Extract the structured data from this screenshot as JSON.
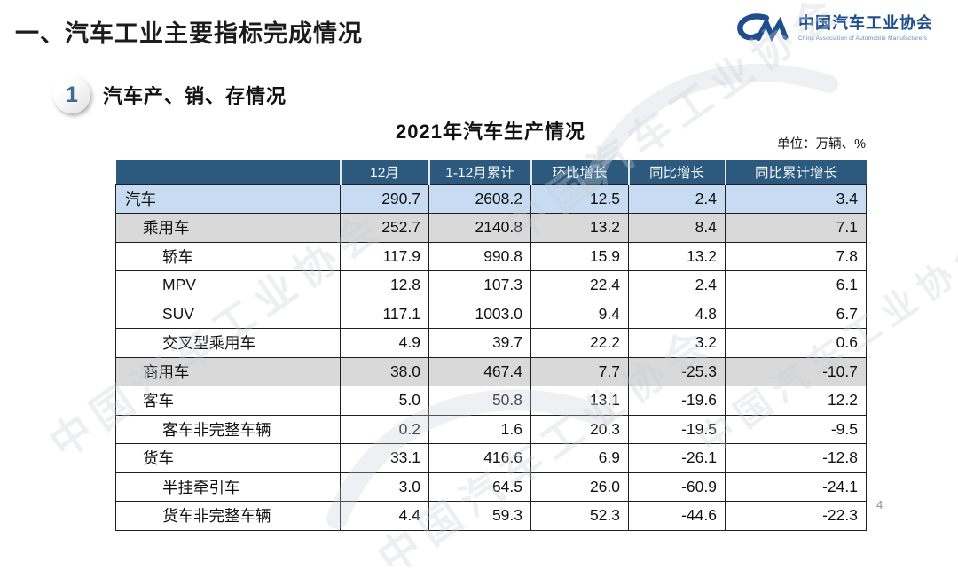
{
  "page": {
    "title": "一、汽车工业主要指标完成情况",
    "page_number": "4"
  },
  "logo": {
    "name_cn": "中国汽车工业协会",
    "name_en": "China Association of Automobile Manufacturers",
    "color": "#1f4e8c"
  },
  "section": {
    "badge": "1",
    "heading": "汽车产、销、存情况"
  },
  "table": {
    "title": "2021年汽车生产情况",
    "unit_note": "单位：万辆、%",
    "colors": {
      "header_bg": "#2b5a7e",
      "highlight_row_bg": "#c7dcf2",
      "subtotal_row_bg": "#d9d9d9"
    },
    "columns": [
      "",
      "12月",
      "1-12月累计",
      "环比增长",
      "同比增长",
      "同比累计增长"
    ],
    "rows": [
      {
        "label": "汽车",
        "indent": 0,
        "style": "highlight",
        "values": [
          "290.7",
          "2608.2",
          "12.5",
          "2.4",
          "3.4"
        ]
      },
      {
        "label": "乘用车",
        "indent": 1,
        "style": "subtotal",
        "values": [
          "252.7",
          "2140.8",
          "13.2",
          "8.4",
          "7.1"
        ]
      },
      {
        "label": "轿车",
        "indent": 2,
        "style": "plain",
        "values": [
          "117.9",
          "990.8",
          "15.9",
          "13.2",
          "7.8"
        ]
      },
      {
        "label": "MPV",
        "indent": 2,
        "style": "plain",
        "values": [
          "12.8",
          "107.3",
          "22.4",
          "2.4",
          "6.1"
        ]
      },
      {
        "label": "SUV",
        "indent": 2,
        "style": "plain",
        "values": [
          "117.1",
          "1003.0",
          "9.4",
          "4.8",
          "6.7"
        ]
      },
      {
        "label": "交叉型乘用车",
        "indent": 2,
        "style": "plain",
        "values": [
          "4.9",
          "39.7",
          "22.2",
          "3.2",
          "0.6"
        ]
      },
      {
        "label": "商用车",
        "indent": 1,
        "style": "subtotal",
        "values": [
          "38.0",
          "467.4",
          "7.7",
          "-25.3",
          "-10.7"
        ]
      },
      {
        "label": "客车",
        "indent": 1,
        "style": "plain",
        "values": [
          "5.0",
          "50.8",
          "13.1",
          "-19.6",
          "12.2"
        ]
      },
      {
        "label": "客车非完整车辆",
        "indent": 2,
        "style": "plain",
        "values": [
          "0.2",
          "1.6",
          "20.3",
          "-19.5",
          "-9.5"
        ]
      },
      {
        "label": "货车",
        "indent": 1,
        "style": "plain",
        "values": [
          "33.1",
          "416.6",
          "6.9",
          "-26.1",
          "-12.8"
        ]
      },
      {
        "label": "半挂牵引车",
        "indent": 2,
        "style": "plain",
        "values": [
          "3.0",
          "64.5",
          "26.0",
          "-60.9",
          "-24.1"
        ]
      },
      {
        "label": "货车非完整车辆",
        "indent": 2,
        "style": "plain",
        "values": [
          "4.4",
          "59.3",
          "52.3",
          "-44.6",
          "-22.3"
        ]
      }
    ]
  },
  "watermark": {
    "text": "中国汽车工业协会"
  }
}
